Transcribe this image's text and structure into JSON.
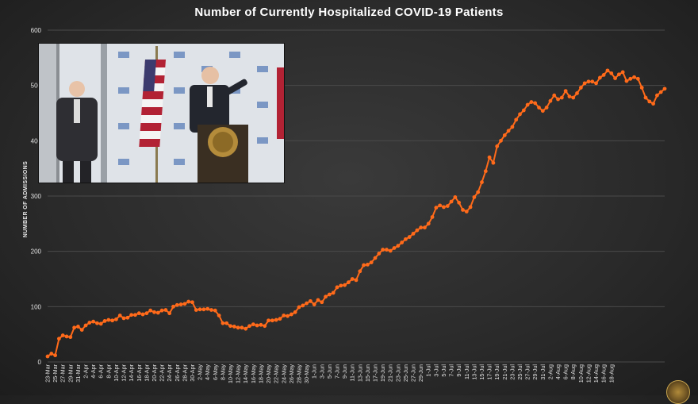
{
  "title": "Number of Currently Hospitalized COVID-19 Patients",
  "colors": {
    "line": "#ff6a1a",
    "grid": "#4a4a4a",
    "background": "#2b2b2b",
    "text": "#e0e0e0"
  },
  "chart_data": {
    "type": "line",
    "title": "Number of Currently Hospitalized COVID-19 Patients",
    "xlabel": "",
    "ylabel": "NUMBER OF ADMISSIONS",
    "ylim": [
      0,
      600
    ],
    "yticks": [
      0,
      100,
      200,
      300,
      400,
      500,
      600
    ],
    "grid": "horizontal",
    "xtick_labels": [
      "23-Mar",
      "25-Mar",
      "27-Mar",
      "29-Mar",
      "31-Mar",
      "2-Apr",
      "4-Apr",
      "6-Apr",
      "8-Apr",
      "10-Apr",
      "12-Apr",
      "14-Apr",
      "16-Apr",
      "18-Apr",
      "20-Apr",
      "22-Apr",
      "24-Apr",
      "26-Apr",
      "28-Apr",
      "30-Apr",
      "2-May",
      "4-May",
      "6-May",
      "8-May",
      "10-May",
      "12-May",
      "14-May",
      "16-May",
      "18-May",
      "20-May",
      "22-May",
      "24-May",
      "26-May",
      "28-May",
      "30-May",
      "1-Jun",
      "3-Jun",
      "5-Jun",
      "7-Jun",
      "9-Jun",
      "11-Jun",
      "13-Jun",
      "15-Jun",
      "17-Jun",
      "19-Jun",
      "21-Jun",
      "23-Jun",
      "25-Jun",
      "27-Jun",
      "29-Jun",
      "1-Jul",
      "3-Jul",
      "5-Jul",
      "7-Jul",
      "9-Jul",
      "11-Jul",
      "13-Jul",
      "15-Jul",
      "17-Jul",
      "19-Jul",
      "21-Jul",
      "23-Jul",
      "25-Jul",
      "27-Jul",
      "29-Jul",
      "31-Jul",
      "2-Aug",
      "4-Aug",
      "6-Aug",
      "8-Aug",
      "10-Aug",
      "12-Aug",
      "14-Aug",
      "16-Aug",
      "18-Aug"
    ],
    "series": [
      {
        "start_date": "23-Mar",
        "values": [
          10,
          15,
          12,
          42,
          48,
          46,
          45,
          62,
          64,
          58,
          66,
          71,
          73,
          70,
          69,
          74,
          76,
          75,
          77,
          84,
          79,
          80,
          85,
          85,
          88,
          86,
          88,
          93,
          90,
          89,
          93,
          94,
          88,
          100,
          103,
          104,
          105,
          109,
          108,
          94,
          95,
          95,
          96,
          94,
          93,
          84,
          70,
          70,
          65,
          64,
          62,
          62,
          60,
          65,
          68,
          66,
          67,
          65,
          75,
          75,
          76,
          78,
          84,
          83,
          86,
          90,
          99,
          102,
          106,
          110,
          104,
          112,
          108,
          118,
          122,
          125,
          135,
          138,
          139,
          144,
          150,
          148,
          164,
          175,
          176,
          180,
          188,
          196,
          203,
          203,
          201,
          206,
          210,
          216,
          222,
          226,
          232,
          238,
          243,
          243,
          250,
          262,
          279,
          283,
          280,
          282,
          290,
          298,
          288,
          275,
          272,
          280,
          298,
          307,
          325,
          345,
          370,
          360,
          390,
          400,
          410,
          418,
          425,
          438,
          448,
          455,
          465,
          470,
          468,
          460,
          454,
          460,
          472,
          482,
          475,
          478,
          490,
          480,
          478,
          486,
          496,
          504,
          507,
          507,
          504,
          514,
          519,
          527,
          522,
          513,
          520,
          524,
          508,
          512,
          515,
          512,
          496,
          478,
          471,
          467,
          482,
          488,
          494
        ]
      }
    ]
  },
  "video": {
    "flag_colors": [
      "#b22234",
      "#ffffff",
      "#3c3b6e"
    ]
  }
}
